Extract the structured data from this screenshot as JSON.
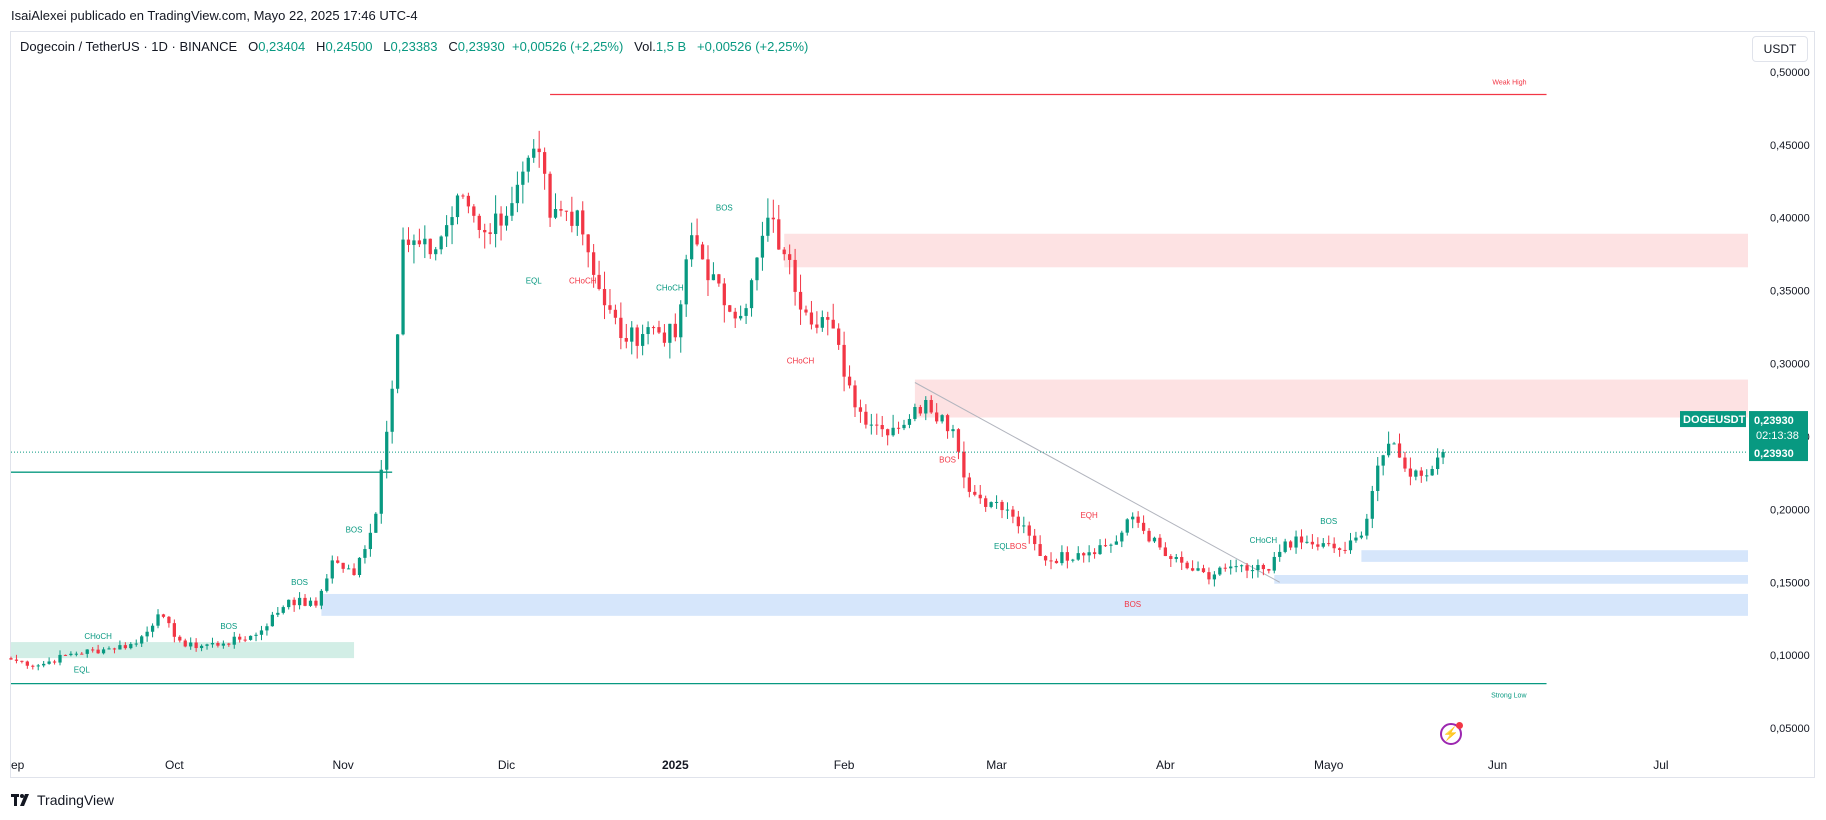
{
  "header": {
    "publisher": "IsaiAlexei publicado en TradingView.com, Mayo 22, 2025 17:46 UTC-4"
  },
  "legend": {
    "symbol": "Dogecoin / TetherUS · 1D · BINANCE",
    "open_label": "O",
    "open": "0,23404",
    "high_label": "H",
    "high": "0,24500",
    "low_label": "L",
    "low": "0,23383",
    "close_label": "C",
    "close": "0,23930",
    "change": "+0,00526 (+2,25%)",
    "vol_label": "Vol.",
    "vol": "1,5 B",
    "vol_change": "+0,00526 (+2,25%)"
  },
  "currency_button": "USDT",
  "footer": {
    "brand": "TradingView"
  },
  "colors": {
    "up": "#089981",
    "down": "#f23645",
    "supply_zone": "#fde2e3",
    "demand_zone": "#d6e6fb",
    "green_zone": "#d2eee6",
    "grid_text": "#131722",
    "trendline": "#b2b5be"
  },
  "chart_data": {
    "type": "candlestick",
    "title": "Dogecoin / TetherUS · 1D · BINANCE",
    "xlabel": "",
    "ylabel": "USDT",
    "ylim": [
      0.035,
      0.515
    ],
    "y_ticks": [
      0.05,
      0.1,
      0.15,
      0.2,
      0.25,
      0.3,
      0.35,
      0.4,
      0.45,
      0.5
    ],
    "y_tick_labels": [
      "0,05000",
      "0,10000",
      "0,15000",
      "0,20000",
      "0,25000",
      "0,30000",
      "0,35000",
      "0,40000",
      "0,45000",
      "0,50000"
    ],
    "x_ticks": [
      {
        "label": "ep",
        "date": "2024-09-01"
      },
      {
        "label": "Oct",
        "date": "2024-10-01"
      },
      {
        "label": "Nov",
        "date": "2024-11-01"
      },
      {
        "label": "Dic",
        "date": "2024-12-01"
      },
      {
        "label": "2025",
        "date": "2025-01-01"
      },
      {
        "label": "Feb",
        "date": "2025-02-01"
      },
      {
        "label": "Mar",
        "date": "2025-03-01"
      },
      {
        "label": "Abr",
        "date": "2025-04-01"
      },
      {
        "label": "Mayo",
        "date": "2025-05-01"
      },
      {
        "label": "Jun",
        "date": "2025-06-01"
      },
      {
        "label": "Jul",
        "date": "2025-07-01"
      }
    ],
    "x_start": "2024-09-01",
    "x_end": "2025-07-17",
    "anchors": [
      [
        "2024-09-01",
        0.097
      ],
      [
        "2024-09-06",
        0.093
      ],
      [
        "2024-09-12",
        0.101
      ],
      [
        "2024-09-18",
        0.104
      ],
      [
        "2024-09-24",
        0.108
      ],
      [
        "2024-09-28",
        0.128
      ],
      [
        "2024-10-03",
        0.106
      ],
      [
        "2024-10-10",
        0.108
      ],
      [
        "2024-10-16",
        0.114
      ],
      [
        "2024-10-22",
        0.138
      ],
      [
        "2024-10-27",
        0.134
      ],
      [
        "2024-10-30",
        0.165
      ],
      [
        "2024-11-03",
        0.155
      ],
      [
        "2024-11-07",
        0.197
      ],
      [
        "2024-11-11",
        0.32
      ],
      [
        "2024-11-12",
        0.385
      ],
      [
        "2024-11-17",
        0.375
      ],
      [
        "2024-11-23",
        0.415
      ],
      [
        "2024-11-27",
        0.39
      ],
      [
        "2024-12-02",
        0.41
      ],
      [
        "2024-12-07",
        0.445
      ],
      [
        "2024-12-09",
        0.4
      ],
      [
        "2024-12-14",
        0.405
      ],
      [
        "2024-12-19",
        0.34
      ],
      [
        "2024-12-23",
        0.315
      ],
      [
        "2024-12-27",
        0.325
      ],
      [
        "2025-01-01",
        0.318
      ],
      [
        "2025-01-04",
        0.388
      ],
      [
        "2025-01-10",
        0.34
      ],
      [
        "2025-01-14",
        0.338
      ],
      [
        "2025-01-18",
        0.4
      ],
      [
        "2025-01-21",
        0.375
      ],
      [
        "2025-01-25",
        0.335
      ],
      [
        "2025-01-29",
        0.33
      ],
      [
        "2025-02-02",
        0.285
      ],
      [
        "2025-02-03",
        0.27
      ],
      [
        "2025-02-08",
        0.255
      ],
      [
        "2025-02-13",
        0.262
      ],
      [
        "2025-02-16",
        0.275
      ],
      [
        "2025-02-21",
        0.255
      ],
      [
        "2025-02-24",
        0.212
      ],
      [
        "2025-02-28",
        0.205
      ],
      [
        "2025-03-04",
        0.195
      ],
      [
        "2025-03-10",
        0.165
      ],
      [
        "2025-03-16",
        0.17
      ],
      [
        "2025-03-23",
        0.178
      ],
      [
        "2025-03-26",
        0.195
      ],
      [
        "2025-04-01",
        0.168
      ],
      [
        "2025-04-06",
        0.158
      ],
      [
        "2025-04-09",
        0.152
      ],
      [
        "2025-04-11",
        0.16
      ],
      [
        "2025-04-16",
        0.158
      ],
      [
        "2025-04-20",
        0.158
      ],
      [
        "2025-04-23",
        0.178
      ],
      [
        "2025-04-28",
        0.176
      ],
      [
        "2025-05-04",
        0.172
      ],
      [
        "2025-05-07",
        0.182
      ],
      [
        "2025-05-10",
        0.23
      ],
      [
        "2025-05-12",
        0.245
      ],
      [
        "2025-05-15",
        0.228
      ],
      [
        "2025-05-18",
        0.223
      ],
      [
        "2025-05-22",
        0.2393
      ]
    ],
    "zones": [
      {
        "kind": "supply",
        "from": "2025-01-21",
        "to": "2025-07-17",
        "low": 0.366,
        "high": 0.389
      },
      {
        "kind": "supply",
        "from": "2025-02-14",
        "to": "2025-07-17",
        "low": 0.263,
        "high": 0.289
      },
      {
        "kind": "demand",
        "from": "2025-05-07",
        "to": "2025-07-17",
        "low": 0.164,
        "high": 0.172
      },
      {
        "kind": "demand",
        "from": "2025-04-21",
        "to": "2025-07-17",
        "low": 0.149,
        "high": 0.155
      },
      {
        "kind": "demand",
        "from": "2024-10-28",
        "to": "2025-07-17",
        "low": 0.127,
        "high": 0.142
      },
      {
        "kind": "green",
        "from": "2024-09-01",
        "to": "2024-11-03",
        "low": 0.098,
        "high": 0.109
      }
    ],
    "levels": [
      {
        "name": "Weak High",
        "value": 0.4845,
        "from": "2024-12-09",
        "to": "2025-06-10",
        "color": "#f23645"
      },
      {
        "name": "Strong Low",
        "value": 0.0805,
        "from": "2024-09-01",
        "to": "2025-06-10",
        "color": "#089981"
      },
      {
        "name": "",
        "value": 0.2255,
        "from": "2024-09-01",
        "to": "2024-11-10",
        "color": "#089981"
      }
    ],
    "annotations": [
      {
        "text": "CHoCH",
        "date": "2024-09-17",
        "y": 0.111,
        "color": "#089981"
      },
      {
        "text": "EQL",
        "date": "2024-09-14",
        "y": 0.088,
        "color": "#089981"
      },
      {
        "text": "BOS",
        "date": "2024-10-11",
        "y": 0.118,
        "color": "#089981"
      },
      {
        "text": "BOS",
        "date": "2024-10-24",
        "y": 0.148,
        "color": "#089981"
      },
      {
        "text": "BOS",
        "date": "2024-11-03",
        "y": 0.184,
        "color": "#089981"
      },
      {
        "text": "EQL",
        "date": "2024-12-06",
        "y": 0.355,
        "color": "#089981"
      },
      {
        "text": "CHoCH",
        "date": "2024-12-15",
        "y": 0.355,
        "color": "#f23645"
      },
      {
        "text": "CHoCH",
        "date": "2024-12-31",
        "y": 0.35,
        "color": "#089981"
      },
      {
        "text": "BOS",
        "date": "2025-01-10",
        "y": 0.405,
        "color": "#089981"
      },
      {
        "text": "CHoCH",
        "date": "2025-01-24",
        "y": 0.3,
        "color": "#f23645"
      },
      {
        "text": "BOS",
        "date": "2025-02-20",
        "y": 0.232,
        "color": "#f23645"
      },
      {
        "text": "EQL",
        "date": "2025-03-02",
        "y": 0.173,
        "color": "#089981"
      },
      {
        "text": "BOS",
        "date": "2025-03-05",
        "y": 0.173,
        "color": "#f23645"
      },
      {
        "text": "EQH",
        "date": "2025-03-18",
        "y": 0.194,
        "color": "#f23645"
      },
      {
        "text": "BOS",
        "date": "2025-03-26",
        "y": 0.133,
        "color": "#f23645"
      },
      {
        "text": "CHoCH",
        "date": "2025-04-19",
        "y": 0.177,
        "color": "#089981"
      },
      {
        "text": "BOS",
        "date": "2025-05-01",
        "y": 0.19,
        "color": "#089981"
      }
    ],
    "trendline": {
      "from": [
        "2025-02-14",
        0.287
      ],
      "to": [
        "2025-04-22",
        0.15
      ]
    },
    "price_labels": {
      "symbol": "DOGEUSDT",
      "price": "0,23930",
      "countdown": "02:13:38",
      "last": "0,23930",
      "value": 0.2393
    }
  }
}
